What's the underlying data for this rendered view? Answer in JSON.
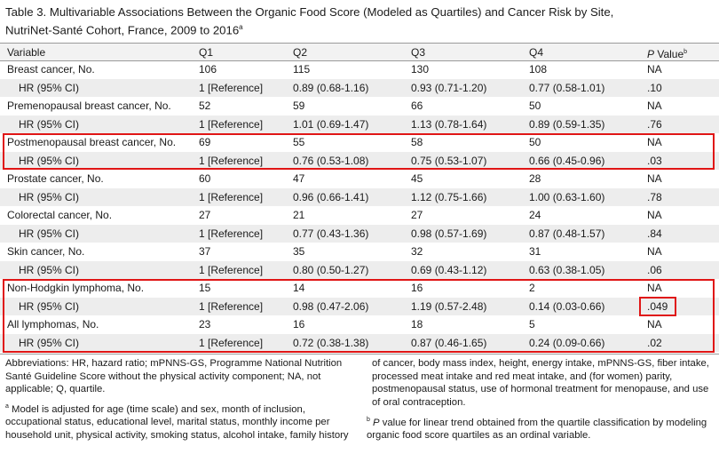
{
  "title": {
    "line1": "Table 3. Multivariable Associations Between the Organic Food Score (Modeled as Quartiles) and Cancer Risk by Site,",
    "line2": "NutriNet-Santé Cohort, France, 2009 to 2016",
    "sup": "a"
  },
  "header": {
    "variable": "Variable",
    "q1": "Q1",
    "q2": "Q2",
    "q3": "Q3",
    "q4": "Q4",
    "p_italic": "P",
    "p_rest": " Value",
    "p_sup": "b"
  },
  "rows": [
    {
      "label": "Breast cancer, No.",
      "q1": "106",
      "q2": "115",
      "q3": "130",
      "q4": "108",
      "p": "NA"
    },
    {
      "label": "HR (95% CI)",
      "q1": "1 [Reference]",
      "q2": "0.89 (0.68-1.16)",
      "q3": "0.93 (0.71-1.20)",
      "q4": "0.77 (0.58-1.01)",
      "p": ".10"
    },
    {
      "label": "Premenopausal breast cancer, No.",
      "q1": "52",
      "q2": "59",
      "q3": "66",
      "q4": "50",
      "p": "NA"
    },
    {
      "label": "HR (95% CI)",
      "q1": "1 [Reference]",
      "q2": "1.01 (0.69-1.47)",
      "q3": "1.13 (0.78-1.64)",
      "q4": "0.89 (0.59-1.35)",
      "p": ".76"
    },
    {
      "label": "Postmenopausal breast cancer, No.",
      "q1": "69",
      "q2": "55",
      "q3": "58",
      "q4": "50",
      "p": "NA"
    },
    {
      "label": "HR (95% CI)",
      "q1": "1 [Reference]",
      "q2": "0.76 (0.53-1.08)",
      "q3": "0.75 (0.53-1.07)",
      "q4": "0.66 (0.45-0.96)",
      "p": ".03"
    },
    {
      "label": "Prostate cancer, No.",
      "q1": "60",
      "q2": "47",
      "q3": "45",
      "q4": "28",
      "p": "NA"
    },
    {
      "label": "HR (95% CI)",
      "q1": "1 [Reference]",
      "q2": "0.96 (0.66-1.41)",
      "q3": "1.12 (0.75-1.66)",
      "q4": "1.00 (0.63-1.60)",
      "p": ".78"
    },
    {
      "label": "Colorectal cancer, No.",
      "q1": "27",
      "q2": "21",
      "q3": "27",
      "q4": "24",
      "p": "NA"
    },
    {
      "label": "HR (95% CI)",
      "q1": "1 [Reference]",
      "q2": "0.77 (0.43-1.36)",
      "q3": "0.98 (0.57-1.69)",
      "q4": "0.87 (0.48-1.57)",
      "p": ".84"
    },
    {
      "label": "Skin cancer, No.",
      "q1": "37",
      "q2": "35",
      "q3": "32",
      "q4": "31",
      "p": "NA"
    },
    {
      "label": "HR (95% CI)",
      "q1": "1 [Reference]",
      "q2": "0.80 (0.50-1.27)",
      "q3": "0.69 (0.43-1.12)",
      "q4": "0.63 (0.38-1.05)",
      "p": ".06"
    },
    {
      "label": "Non-Hodgkin lymphoma, No.",
      "q1": "15",
      "q2": "14",
      "q3": "16",
      "q4": "2",
      "p": "NA"
    },
    {
      "label": "HR (95% CI)",
      "q1": "1 [Reference]",
      "q2": "0.98 (0.47-2.06)",
      "q3": "1.19 (0.57-2.48)",
      "q4": "0.14 (0.03-0.66)",
      "p": ".049"
    },
    {
      "label": "All lymphomas, No.",
      "q1": "23",
      "q2": "16",
      "q3": "18",
      "q4": "5",
      "p": "NA"
    },
    {
      "label": "HR (95% CI)",
      "q1": "1 [Reference]",
      "q2": "0.72 (0.38-1.38)",
      "q3": "0.87 (0.46-1.65)",
      "q4": "0.24 (0.09-0.66)",
      "p": ".02"
    }
  ],
  "footnotes": {
    "abbrev_left": "Abbreviations: HR, hazard ratio; mPNNS-GS, Programme National Nutrition Santé Guideline Score without the physical activity component; NA, not applicable; Q, quartile.",
    "a_marker": "a",
    "a_left": "Model is adjusted for age (time scale) and sex, month of inclusion, occupational status, educational level, marital status, monthly income per household unit, physical activity, smoking status, alcohol intake, family history",
    "a_right": "of cancer, body mass index, height, energy intake, mPNNS-GS, fiber intake, processed meat intake and red meat intake, and (for women) parity, postmenopausal status, use of hormonal treatment for menopause, and use of oral contraception.",
    "b_marker": "b",
    "b_italic": "P",
    "b_right": " value for linear trend obtained from the quartile classification by modeling organic food score quartiles as an ordinal variable."
  },
  "colors": {
    "highlight": "#e01616",
    "header_bg": "#f2f2f2",
    "shade_bg": "#ededed"
  }
}
